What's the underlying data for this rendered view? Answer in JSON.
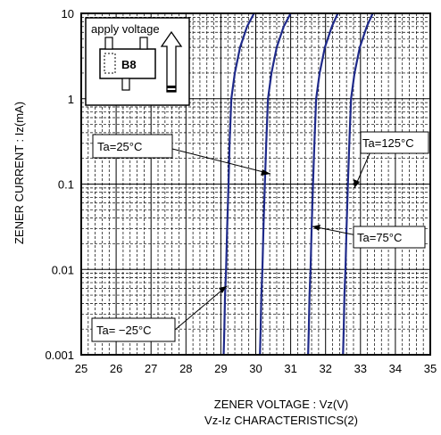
{
  "chart_data": {
    "type": "line",
    "title": "Vz-Iz CHARACTERISTICS(2)",
    "xlabel": "ZENER VOLTAGE : Vz(V)",
    "ylabel": "ZENER CURRENT : Iz(mA)",
    "xlim": [
      25,
      35
    ],
    "ylim": [
      0.001,
      10
    ],
    "yscale": "log",
    "x_ticks": [
      "25",
      "26",
      "27",
      "28",
      "29",
      "30",
      "31",
      "32",
      "33",
      "34",
      "35"
    ],
    "y_ticks": [
      "0.001",
      "0.01",
      "0.1",
      "1",
      "10"
    ],
    "grid": true,
    "line_color": "#1f2a8a",
    "series": [
      {
        "name": "Ta= −25°C",
        "points": [
          [
            29.08,
            0.001
          ],
          [
            29.1,
            0.002
          ],
          [
            29.12,
            0.005
          ],
          [
            29.15,
            0.01
          ],
          [
            29.18,
            0.03
          ],
          [
            29.22,
            0.1
          ],
          [
            29.25,
            0.3
          ],
          [
            29.3,
            1
          ],
          [
            29.4,
            2
          ],
          [
            29.55,
            4
          ],
          [
            29.75,
            7
          ],
          [
            29.95,
            10
          ]
        ]
      },
      {
        "name": "Ta=25°C",
        "points": [
          [
            30.12,
            0.001
          ],
          [
            30.14,
            0.002
          ],
          [
            30.16,
            0.005
          ],
          [
            30.19,
            0.01
          ],
          [
            30.22,
            0.03
          ],
          [
            30.26,
            0.1
          ],
          [
            30.3,
            0.3
          ],
          [
            30.35,
            1
          ],
          [
            30.45,
            2
          ],
          [
            30.6,
            4
          ],
          [
            30.8,
            7
          ],
          [
            31.0,
            10
          ]
        ]
      },
      {
        "name": "Ta=75°C",
        "points": [
          [
            31.5,
            0.001
          ],
          [
            31.52,
            0.002
          ],
          [
            31.54,
            0.005
          ],
          [
            31.57,
            0.01
          ],
          [
            31.6,
            0.03
          ],
          [
            31.64,
            0.1
          ],
          [
            31.68,
            0.3
          ],
          [
            31.73,
            1
          ],
          [
            31.83,
            2
          ],
          [
            31.98,
            4
          ],
          [
            32.18,
            7
          ],
          [
            32.35,
            10
          ]
        ]
      },
      {
        "name": "Ta=125°C",
        "points": [
          [
            32.5,
            0.001
          ],
          [
            32.52,
            0.002
          ],
          [
            32.54,
            0.005
          ],
          [
            32.57,
            0.01
          ],
          [
            32.6,
            0.03
          ],
          [
            32.64,
            0.1
          ],
          [
            32.68,
            0.3
          ],
          [
            32.73,
            1
          ],
          [
            32.83,
            2
          ],
          [
            32.98,
            4
          ],
          [
            33.18,
            7
          ],
          [
            33.35,
            10
          ]
        ]
      }
    ],
    "annotations": [
      {
        "label": "Ta=25°C",
        "points_to": [
          30.25,
          0.14
        ]
      },
      {
        "label": "Ta=125°C",
        "points_to": [
          32.62,
          0.1
        ]
      },
      {
        "label": "Ta=75°C",
        "points_to": [
          31.68,
          0.035
        ]
      },
      {
        "label": "Ta= −25°C",
        "points_to": [
          29.2,
          0.0065
        ]
      }
    ],
    "inset": {
      "label": "apply voltage",
      "package_marking": "B8",
      "icon": "sot23-package-icon",
      "arrow_icon": "up-arrow-icon"
    }
  }
}
